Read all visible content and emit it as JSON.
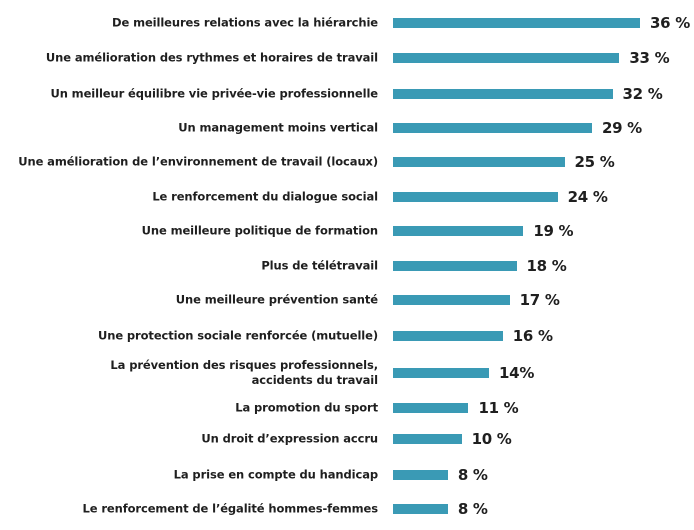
{
  "chart_data": {
    "type": "bar",
    "orientation": "horizontal",
    "title": "",
    "xlabel": "",
    "ylabel": "",
    "xlim": [
      0,
      36
    ],
    "grid": false,
    "bar_color": "#3a9ab5",
    "categories": [
      "De meilleures relations avec la hiérarchie",
      "Une amélioration des rythmes et horaires de travail",
      "Un meilleur équilibre vie privée-vie professionnelle",
      "Un management moins vertical",
      "Une amélioration de l’environnement de travail (locaux)",
      "Le renforcement du dialogue social",
      "Une meilleure politique de formation",
      "Plus de télétravail",
      "Une meilleure prévention santé",
      "Une protection sociale renforcée (mutuelle)",
      "La prévention des risques professionnels,\naccidents du travail",
      "La promotion du sport",
      "Un droit d’expression accru",
      "La prise en compte du handicap",
      "Le renforcement de l’égalité hommes-femmes"
    ],
    "values": [
      36,
      33,
      32,
      29,
      25,
      24,
      19,
      18,
      17,
      16,
      14,
      11,
      10,
      8,
      8
    ],
    "value_labels": [
      "36 %",
      "33 %",
      "32 %",
      "29 %",
      "25 %",
      "24 %",
      "19 %",
      "18 %",
      "17 %",
      "16 %",
      "14%",
      "11 %",
      "10 %",
      "8 %",
      "8 %"
    ]
  }
}
